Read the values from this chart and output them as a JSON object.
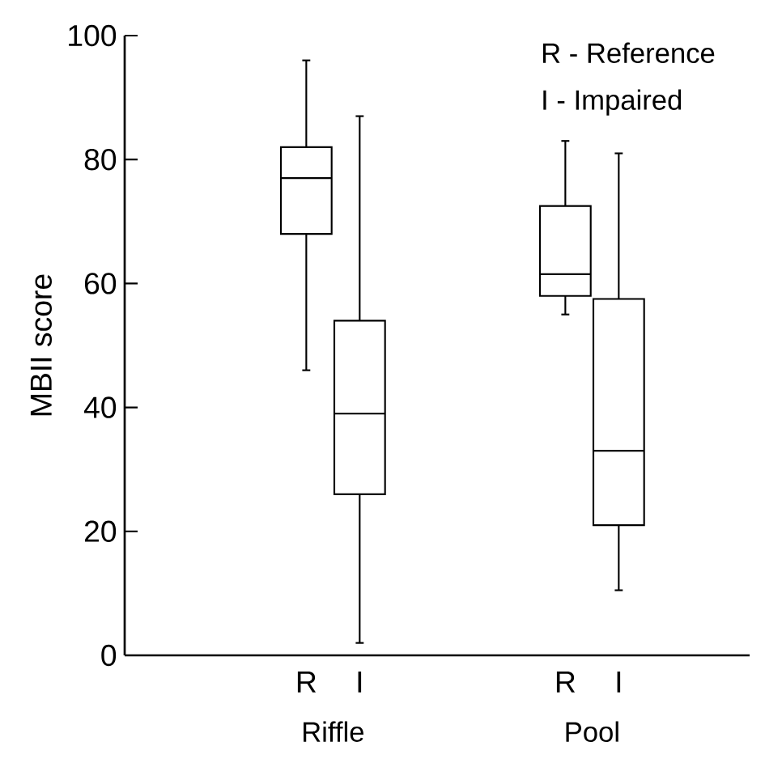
{
  "chart_data": {
    "type": "box",
    "ylabel": "MBII score",
    "categories": [
      "R",
      "I",
      "R",
      "I"
    ],
    "boxes": [
      {
        "low": 46,
        "q1": 68,
        "median": 77,
        "q3": 82,
        "high": 96
      },
      {
        "low": 2,
        "q1": 26,
        "median": 39,
        "q3": 54,
        "high": 87
      },
      {
        "low": 55,
        "q1": 58,
        "median": 61.5,
        "q3": 72.5,
        "high": 83
      },
      {
        "low": 10.5,
        "q1": 21,
        "median": 33,
        "q3": 57.5,
        "high": 81
      }
    ],
    "ylim": [
      0,
      100
    ],
    "yticks": [
      0,
      20,
      40,
      60,
      80,
      100
    ],
    "color": "#000000",
    "annotations": [
      "R - Reference",
      "I - Impaired",
      "Riffle",
      "Pool"
    ]
  }
}
